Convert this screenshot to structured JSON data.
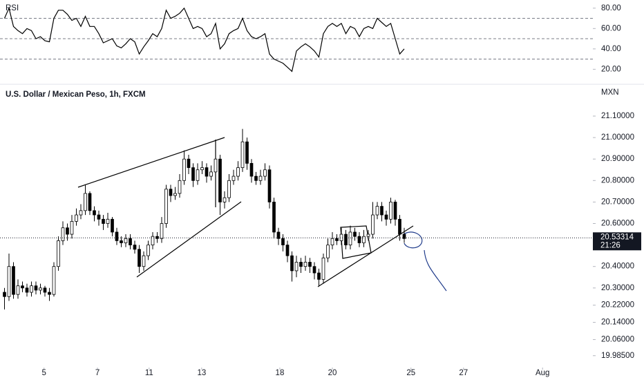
{
  "chart_data": [
    {
      "type": "line",
      "title": "RSI",
      "color": "#000000",
      "xlim": [
        0,
        132
      ],
      "ylim": [
        8,
        88
      ],
      "yticks": [
        {
          "value": 80,
          "label": "80.00"
        },
        {
          "value": 60,
          "label": "60.00"
        },
        {
          "value": 40,
          "label": "40.00"
        },
        {
          "value": 20,
          "label": "20.00"
        }
      ],
      "levels": [
        70,
        50,
        30
      ],
      "values": [
        70,
        80,
        62,
        58,
        55,
        60,
        58,
        50,
        52,
        48,
        47,
        70,
        78,
        78,
        74,
        68,
        70,
        62,
        72,
        62,
        62,
        55,
        46,
        48,
        50,
        43,
        41,
        45,
        50,
        47,
        35,
        42,
        48,
        55,
        52,
        60,
        78,
        70,
        72,
        75,
        80,
        70,
        60,
        62,
        60,
        52,
        55,
        65,
        40,
        45,
        55,
        58,
        60,
        70,
        58,
        52,
        50,
        52,
        55,
        35,
        30,
        28,
        26,
        22,
        18,
        38,
        42,
        45,
        42,
        38,
        32,
        55,
        62,
        65,
        62,
        65,
        55,
        62,
        60,
        52,
        60,
        62,
        60,
        70,
        66,
        62,
        65,
        50,
        35,
        40
      ]
    },
    {
      "type": "candlestick",
      "title": "U.S. Dollar / Mexican Peso, 1h, FXCM",
      "unit": "MXN",
      "up_color": "#ffffff",
      "down_color": "#000000",
      "edge_color": "#000000",
      "xlim": [
        0,
        132
      ],
      "ylim": [
        19.92,
        21.19
      ],
      "xticks": [
        {
          "value": 9.8,
          "label": "5"
        },
        {
          "value": 21.7,
          "label": "7"
        },
        {
          "value": 33.2,
          "label": "11"
        },
        {
          "value": 44.9,
          "label": "13"
        },
        {
          "value": 62.3,
          "label": "18"
        },
        {
          "value": 74,
          "label": "20"
        },
        {
          "value": 91.5,
          "label": "25"
        },
        {
          "value": 103.2,
          "label": "27"
        },
        {
          "value": 120.8,
          "label": "Aug"
        }
      ],
      "yticks": [
        {
          "value": 21.1,
          "label": "21.10000"
        },
        {
          "value": 21.0,
          "label": "21.00000"
        },
        {
          "value": 20.9,
          "label": "20.90000"
        },
        {
          "value": 20.8,
          "label": "20.80000"
        },
        {
          "value": 20.7,
          "label": "20.70000"
        },
        {
          "value": 20.6,
          "label": "20.60000"
        },
        {
          "value": 20.4,
          "label": "20.40000"
        },
        {
          "value": 20.3,
          "label": "20.30000"
        },
        {
          "value": 20.22,
          "label": "20.22000"
        },
        {
          "value": 20.14,
          "label": "20.14000"
        },
        {
          "value": 20.06,
          "label": "20.06000"
        },
        {
          "value": 19.985,
          "label": "19.98500"
        }
      ],
      "current_price": 20.53314,
      "countdown": "21:26",
      "open": [
        20.28,
        20.26,
        20.4,
        20.27,
        20.31,
        20.3,
        20.28,
        20.31,
        20.29,
        20.3,
        20.28,
        20.27,
        20.4,
        20.52,
        20.58,
        20.55,
        20.61,
        20.64,
        20.66,
        20.74,
        20.66,
        20.64,
        20.62,
        20.6,
        20.62,
        20.56,
        20.52,
        20.51,
        20.53,
        20.5,
        20.48,
        20.4,
        20.45,
        20.5,
        20.54,
        20.53,
        20.6,
        20.76,
        20.73,
        20.74,
        20.8,
        20.9,
        20.86,
        20.8,
        20.85,
        20.86,
        20.82,
        20.84,
        20.9,
        20.7,
        20.72,
        20.8,
        20.82,
        20.86,
        20.98,
        20.88,
        20.82,
        20.8,
        20.82,
        20.85,
        20.7,
        20.56,
        20.53,
        20.5,
        20.45,
        20.38,
        20.42,
        20.4,
        20.42,
        20.4,
        20.37,
        20.34,
        20.44,
        20.5,
        20.53,
        20.52,
        20.55,
        20.5,
        20.56,
        20.54,
        20.51,
        20.54,
        20.55,
        20.64,
        20.68,
        20.64,
        20.62,
        20.7,
        20.62,
        20.55
      ],
      "high": [
        20.3,
        20.46,
        20.42,
        20.34,
        20.33,
        20.32,
        20.33,
        20.33,
        20.32,
        20.31,
        20.3,
        20.42,
        20.54,
        20.61,
        20.6,
        20.64,
        20.67,
        20.69,
        20.78,
        20.75,
        20.68,
        20.66,
        20.64,
        20.65,
        20.63,
        20.58,
        20.54,
        20.55,
        20.55,
        20.52,
        20.5,
        20.47,
        20.52,
        20.56,
        20.56,
        20.63,
        20.78,
        20.78,
        20.77,
        20.83,
        20.94,
        20.92,
        20.88,
        20.88,
        20.89,
        20.88,
        20.87,
        20.99,
        20.92,
        20.75,
        20.83,
        20.85,
        20.89,
        21.04,
        21.0,
        20.9,
        20.84,
        20.85,
        20.88,
        20.87,
        20.72,
        20.58,
        20.55,
        20.52,
        20.47,
        20.45,
        20.44,
        20.45,
        20.44,
        20.42,
        20.39,
        20.46,
        20.53,
        20.56,
        20.55,
        20.58,
        20.57,
        20.59,
        20.58,
        20.56,
        20.57,
        20.57,
        20.7,
        20.7,
        20.7,
        20.66,
        20.72,
        20.71,
        20.64,
        20.58
      ],
      "low": [
        20.2,
        20.24,
        20.25,
        20.25,
        20.28,
        20.26,
        20.26,
        20.27,
        20.27,
        20.26,
        20.24,
        20.26,
        20.38,
        20.5,
        20.52,
        20.53,
        20.59,
        20.62,
        20.64,
        20.64,
        20.61,
        20.59,
        20.57,
        20.58,
        20.54,
        20.5,
        20.49,
        20.49,
        20.48,
        20.46,
        20.37,
        20.38,
        20.43,
        20.48,
        20.51,
        20.51,
        20.58,
        20.7,
        20.71,
        20.72,
        20.78,
        20.83,
        20.77,
        20.78,
        20.83,
        20.79,
        20.8,
        20.82,
        20.64,
        20.67,
        20.7,
        20.78,
        20.8,
        20.84,
        20.85,
        20.79,
        20.78,
        20.78,
        20.8,
        20.67,
        20.53,
        20.5,
        20.47,
        20.42,
        20.33,
        20.35,
        20.37,
        20.38,
        20.37,
        20.34,
        20.31,
        20.32,
        20.42,
        20.48,
        20.5,
        20.5,
        20.48,
        20.48,
        20.52,
        20.49,
        20.49,
        20.52,
        20.53,
        20.62,
        20.61,
        20.59,
        20.6,
        20.59,
        20.52,
        20.51
      ],
      "close": [
        20.26,
        20.4,
        20.27,
        20.31,
        20.3,
        20.28,
        20.31,
        20.29,
        20.3,
        20.28,
        20.27,
        20.4,
        20.52,
        20.58,
        20.55,
        20.61,
        20.64,
        20.66,
        20.74,
        20.66,
        20.64,
        20.62,
        20.6,
        20.62,
        20.56,
        20.52,
        20.51,
        20.53,
        20.5,
        20.48,
        20.4,
        20.45,
        20.5,
        20.54,
        20.53,
        20.6,
        20.76,
        20.73,
        20.74,
        20.8,
        20.9,
        20.86,
        20.8,
        20.85,
        20.86,
        20.82,
        20.84,
        20.9,
        20.7,
        20.72,
        20.8,
        20.82,
        20.86,
        20.98,
        20.88,
        20.82,
        20.8,
        20.82,
        20.85,
        20.7,
        20.56,
        20.53,
        20.5,
        20.45,
        20.38,
        20.42,
        20.4,
        20.42,
        20.4,
        20.37,
        20.34,
        20.44,
        20.5,
        20.53,
        20.52,
        20.55,
        20.5,
        20.56,
        20.54,
        20.51,
        20.54,
        20.55,
        20.64,
        20.68,
        20.64,
        20.62,
        20.7,
        20.62,
        20.55,
        20.53
      ]
    }
  ]
}
